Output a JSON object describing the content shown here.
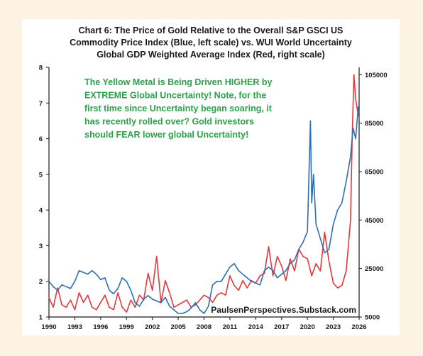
{
  "chart_data": {
    "type": "line",
    "title_lines": [
      "Chart 6: The Price of Gold Relative to the Overall S&P GSCI US",
      "Commodity Price Index (Blue, left scale) vs. WUI World Uncertainty",
      "Global GDP Weighted Average Index (Red, right scale)"
    ],
    "annotation_lines": [
      "The Yellow Metal is Being Driven HIGHER by",
      "EXTREME Global Uncertainty!   Note, for the",
      "first time since Uncertainty began soaring, it",
      "has recently rolled over?  Gold investors",
      "should FEAR lower global Uncertainty!"
    ],
    "source": "PaulsenPerspectives.Substack.com",
    "x_ticks": [
      "1990",
      "1993",
      "1996",
      "1999",
      "2002",
      "2005",
      "2008",
      "2011",
      "2014",
      "2017",
      "2020",
      "2023",
      "2026"
    ],
    "xlim": [
      1990,
      2026
    ],
    "y_left_ticks": [
      "1",
      "2",
      "3",
      "4",
      "5",
      "6",
      "7",
      "8"
    ],
    "y_left_lim": [
      1,
      8
    ],
    "y_right_ticks": [
      "5000",
      "25000",
      "45000",
      "65000",
      "85000",
      "105000"
    ],
    "y_right_lim": [
      5000,
      108000
    ],
    "colors": {
      "gold_ratio": "#2e6fae",
      "uncertainty": "#e8363b",
      "annotation": "#2ca14a",
      "background": "#fdf3e2"
    },
    "series": [
      {
        "axis": "left",
        "x": [
          1990.0,
          1990.5,
          1991.0,
          1991.5,
          1992.0,
          1992.5,
          1993.0,
          1993.5,
          1994.0,
          1994.5,
          1995.0,
          1995.5,
          1996.0,
          1996.5,
          1997.0,
          1997.5,
          1998.0,
          1998.5,
          1999.0,
          1999.5,
          2000.0,
          2000.5,
          2001.0,
          2001.5,
          2002.0,
          2002.5,
          2003.0,
          2003.5,
          2004.0,
          2004.5,
          2005.0,
          2005.5,
          2006.0,
          2006.5,
          2007.0,
          2007.5,
          2008.0,
          2008.5,
          2009.0,
          2009.5,
          2010.0,
          2010.5,
          2011.0,
          2011.5,
          2012.0,
          2012.5,
          2013.0,
          2013.5,
          2014.0,
          2014.5,
          2015.0,
          2015.5,
          2016.0,
          2016.5,
          2017.0,
          2017.5,
          2018.0,
          2018.5,
          2019.0,
          2019.5,
          2020.0,
          2020.2,
          2020.35,
          2020.5,
          2020.7,
          2021.0,
          2021.5,
          2022.0,
          2022.5,
          2023.0,
          2023.5,
          2024.0,
          2024.5,
          2025.0,
          2025.3,
          2025.6,
          2025.9
        ],
        "values": [
          2.0,
          1.85,
          1.75,
          1.9,
          1.85,
          1.8,
          2.0,
          2.3,
          2.25,
          2.2,
          2.3,
          2.2,
          2.05,
          2.1,
          1.75,
          1.65,
          1.8,
          2.1,
          2.0,
          1.75,
          1.4,
          1.3,
          1.5,
          1.6,
          1.5,
          1.45,
          1.4,
          1.55,
          1.3,
          1.2,
          1.1,
          1.1,
          1.15,
          1.25,
          1.4,
          1.2,
          1.1,
          1.3,
          1.9,
          2.0,
          2.0,
          2.2,
          2.4,
          2.5,
          2.3,
          2.2,
          2.1,
          2.0,
          1.95,
          1.9,
          2.3,
          2.4,
          2.3,
          2.1,
          2.2,
          2.3,
          2.5,
          2.6,
          2.9,
          3.1,
          3.4,
          5.2,
          6.5,
          4.2,
          5.0,
          3.6,
          3.2,
          2.8,
          2.9,
          3.6,
          4.0,
          4.2,
          4.8,
          5.5,
          6.3,
          6.0,
          6.9
        ]
      },
      {
        "axis": "right",
        "x": [
          1990.0,
          1990.5,
          1991.0,
          1991.5,
          1992.0,
          1992.5,
          1993.0,
          1993.5,
          1994.0,
          1994.5,
          1995.0,
          1995.5,
          1996.0,
          1996.5,
          1997.0,
          1997.5,
          1998.0,
          1998.5,
          1999.0,
          1999.5,
          2000.0,
          2000.5,
          2001.0,
          2001.5,
          2002.0,
          2002.5,
          2003.0,
          2003.5,
          2004.0,
          2004.5,
          2005.0,
          2005.5,
          2006.0,
          2006.5,
          2007.0,
          2007.5,
          2008.0,
          2008.5,
          2009.0,
          2009.5,
          2010.0,
          2010.5,
          2011.0,
          2011.5,
          2012.0,
          2012.5,
          2013.0,
          2013.5,
          2014.0,
          2014.5,
          2015.0,
          2015.5,
          2016.0,
          2016.5,
          2017.0,
          2017.5,
          2018.0,
          2018.5,
          2019.0,
          2019.5,
          2020.0,
          2020.5,
          2021.0,
          2021.5,
          2022.0,
          2022.5,
          2023.0,
          2023.5,
          2024.0,
          2024.5,
          2025.0,
          2025.2,
          2025.4,
          2025.6,
          2025.9
        ],
        "values": [
          13000,
          9000,
          17000,
          10000,
          9000,
          12000,
          8000,
          15000,
          11000,
          14000,
          9000,
          8000,
          11000,
          14000,
          9000,
          8000,
          15000,
          9000,
          7000,
          12000,
          9000,
          14000,
          12000,
          23000,
          16000,
          30000,
          11000,
          20000,
          15000,
          9000,
          10000,
          11000,
          12000,
          9000,
          10000,
          12000,
          14000,
          13000,
          11000,
          14000,
          15000,
          14000,
          22000,
          18000,
          16000,
          20000,
          17000,
          20000,
          19000,
          22000,
          23000,
          34000,
          22000,
          30000,
          26000,
          20000,
          29000,
          24000,
          33000,
          30000,
          29000,
          22000,
          27000,
          24000,
          40000,
          28000,
          19000,
          17000,
          18000,
          24000,
          45000,
          80000,
          105000,
          95000,
          88000
        ]
      }
    ]
  }
}
